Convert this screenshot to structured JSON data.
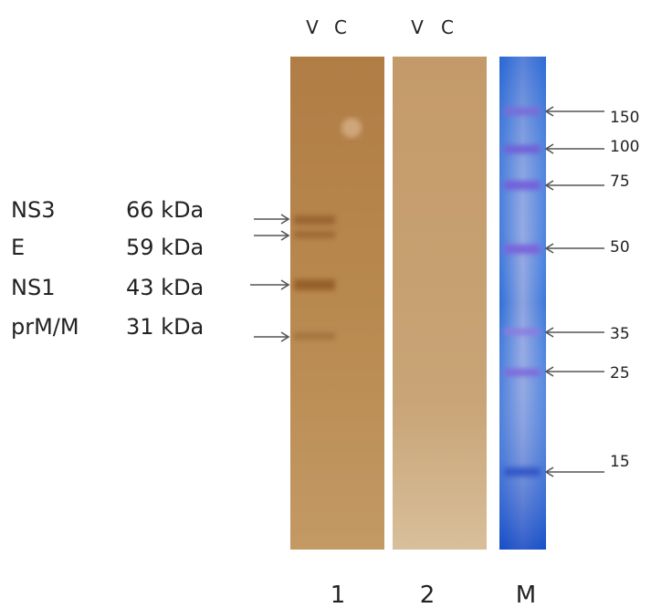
{
  "strip_headers": [
    [
      "V",
      "C"
    ],
    [
      "V",
      "C"
    ]
  ],
  "proteins": [
    {
      "name": "NS3",
      "size": "66 kDa"
    },
    {
      "name": "E",
      "size": "59 kDa"
    },
    {
      "name": "NS1",
      "size": "43 kDa"
    },
    {
      "name": "prM/M",
      "size": "31 kDa"
    }
  ],
  "marker_labels": [
    "150",
    "100",
    "75",
    "50",
    "35",
    "25",
    "15"
  ],
  "strip_labels": [
    "1",
    "2",
    "M"
  ]
}
